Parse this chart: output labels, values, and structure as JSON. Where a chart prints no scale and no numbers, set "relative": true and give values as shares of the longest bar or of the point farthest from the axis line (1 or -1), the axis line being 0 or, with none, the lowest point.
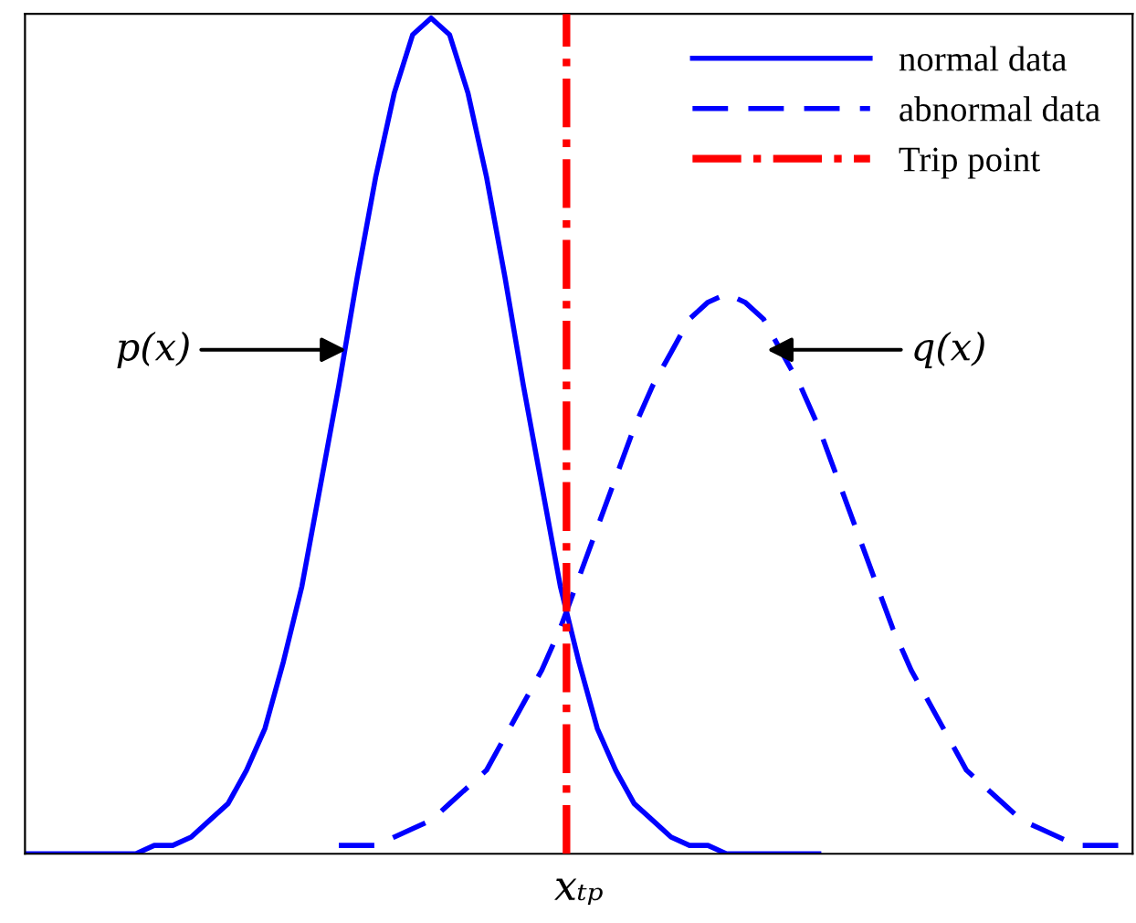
{
  "chart_data": {
    "type": "line",
    "relative": true,
    "xlabel": "xₜₚ",
    "categories": [
      null,
      null,
      null,
      null,
      null,
      null,
      null,
      null,
      null,
      null,
      null,
      null,
      null,
      null,
      null,
      null,
      null,
      null,
      null,
      null,
      null,
      null,
      null,
      null,
      null,
      null,
      null,
      null,
      null,
      null,
      null,
      null,
      null,
      null,
      null,
      null,
      null,
      null,
      null,
      null,
      null,
      null,
      null,
      null,
      null,
      null,
      null,
      null,
      null,
      null,
      null,
      null,
      null,
      null,
      null,
      null,
      null,
      null,
      null,
      null,
      null
    ],
    "series": [
      {
        "name": "normal data",
        "color": "#0000ff",
        "line_style": "solid",
        "values": [
          0,
          0,
          0,
          0,
          0,
          0,
          0,
          0.01,
          0.01,
          0.02,
          0.04,
          0.06,
          0.1,
          0.15,
          0.23,
          0.32,
          0.44,
          0.56,
          0.69,
          0.81,
          0.91,
          0.98,
          1,
          0.98,
          0.91,
          0.81,
          0.69,
          0.56,
          0.44,
          0.32,
          0.23,
          0.15,
          0.1,
          0.06,
          0.04,
          0.02,
          0.01,
          0.01,
          0,
          0,
          0,
          0,
          0,
          0,
          null,
          null,
          null,
          null,
          null,
          null,
          null,
          null,
          null,
          null,
          null,
          null,
          null,
          null,
          null,
          null,
          null
        ]
      },
      {
        "name": "abnormal data",
        "color": "#0000ff",
        "line_style": "dashed",
        "values": [
          null,
          null,
          null,
          null,
          null,
          null,
          null,
          null,
          null,
          null,
          null,
          null,
          null,
          null,
          null,
          null,
          null,
          0.01,
          0.01,
          0.01,
          0.02,
          0.03,
          0.04,
          0.06,
          0.08,
          0.1,
          0.14,
          0.18,
          0.22,
          0.27,
          0.33,
          0.39,
          0.45,
          0.51,
          0.56,
          0.6,
          0.64,
          0.66,
          0.67,
          0.66,
          0.64,
          0.6,
          0.56,
          0.51,
          0.45,
          0.39,
          0.33,
          0.27,
          0.22,
          0.18,
          0.14,
          0.1,
          0.08,
          0.06,
          0.04,
          0.03,
          0.02,
          0.01,
          0.01,
          0.01,
          0.01
        ]
      }
    ],
    "ref_lines": [
      {
        "axis": "x",
        "label": "Trip point",
        "color": "#ff0000",
        "line_style": "dashdot"
      }
    ],
    "annotations": [
      "p(x)",
      "q(x)"
    ],
    "legend": "top right"
  }
}
